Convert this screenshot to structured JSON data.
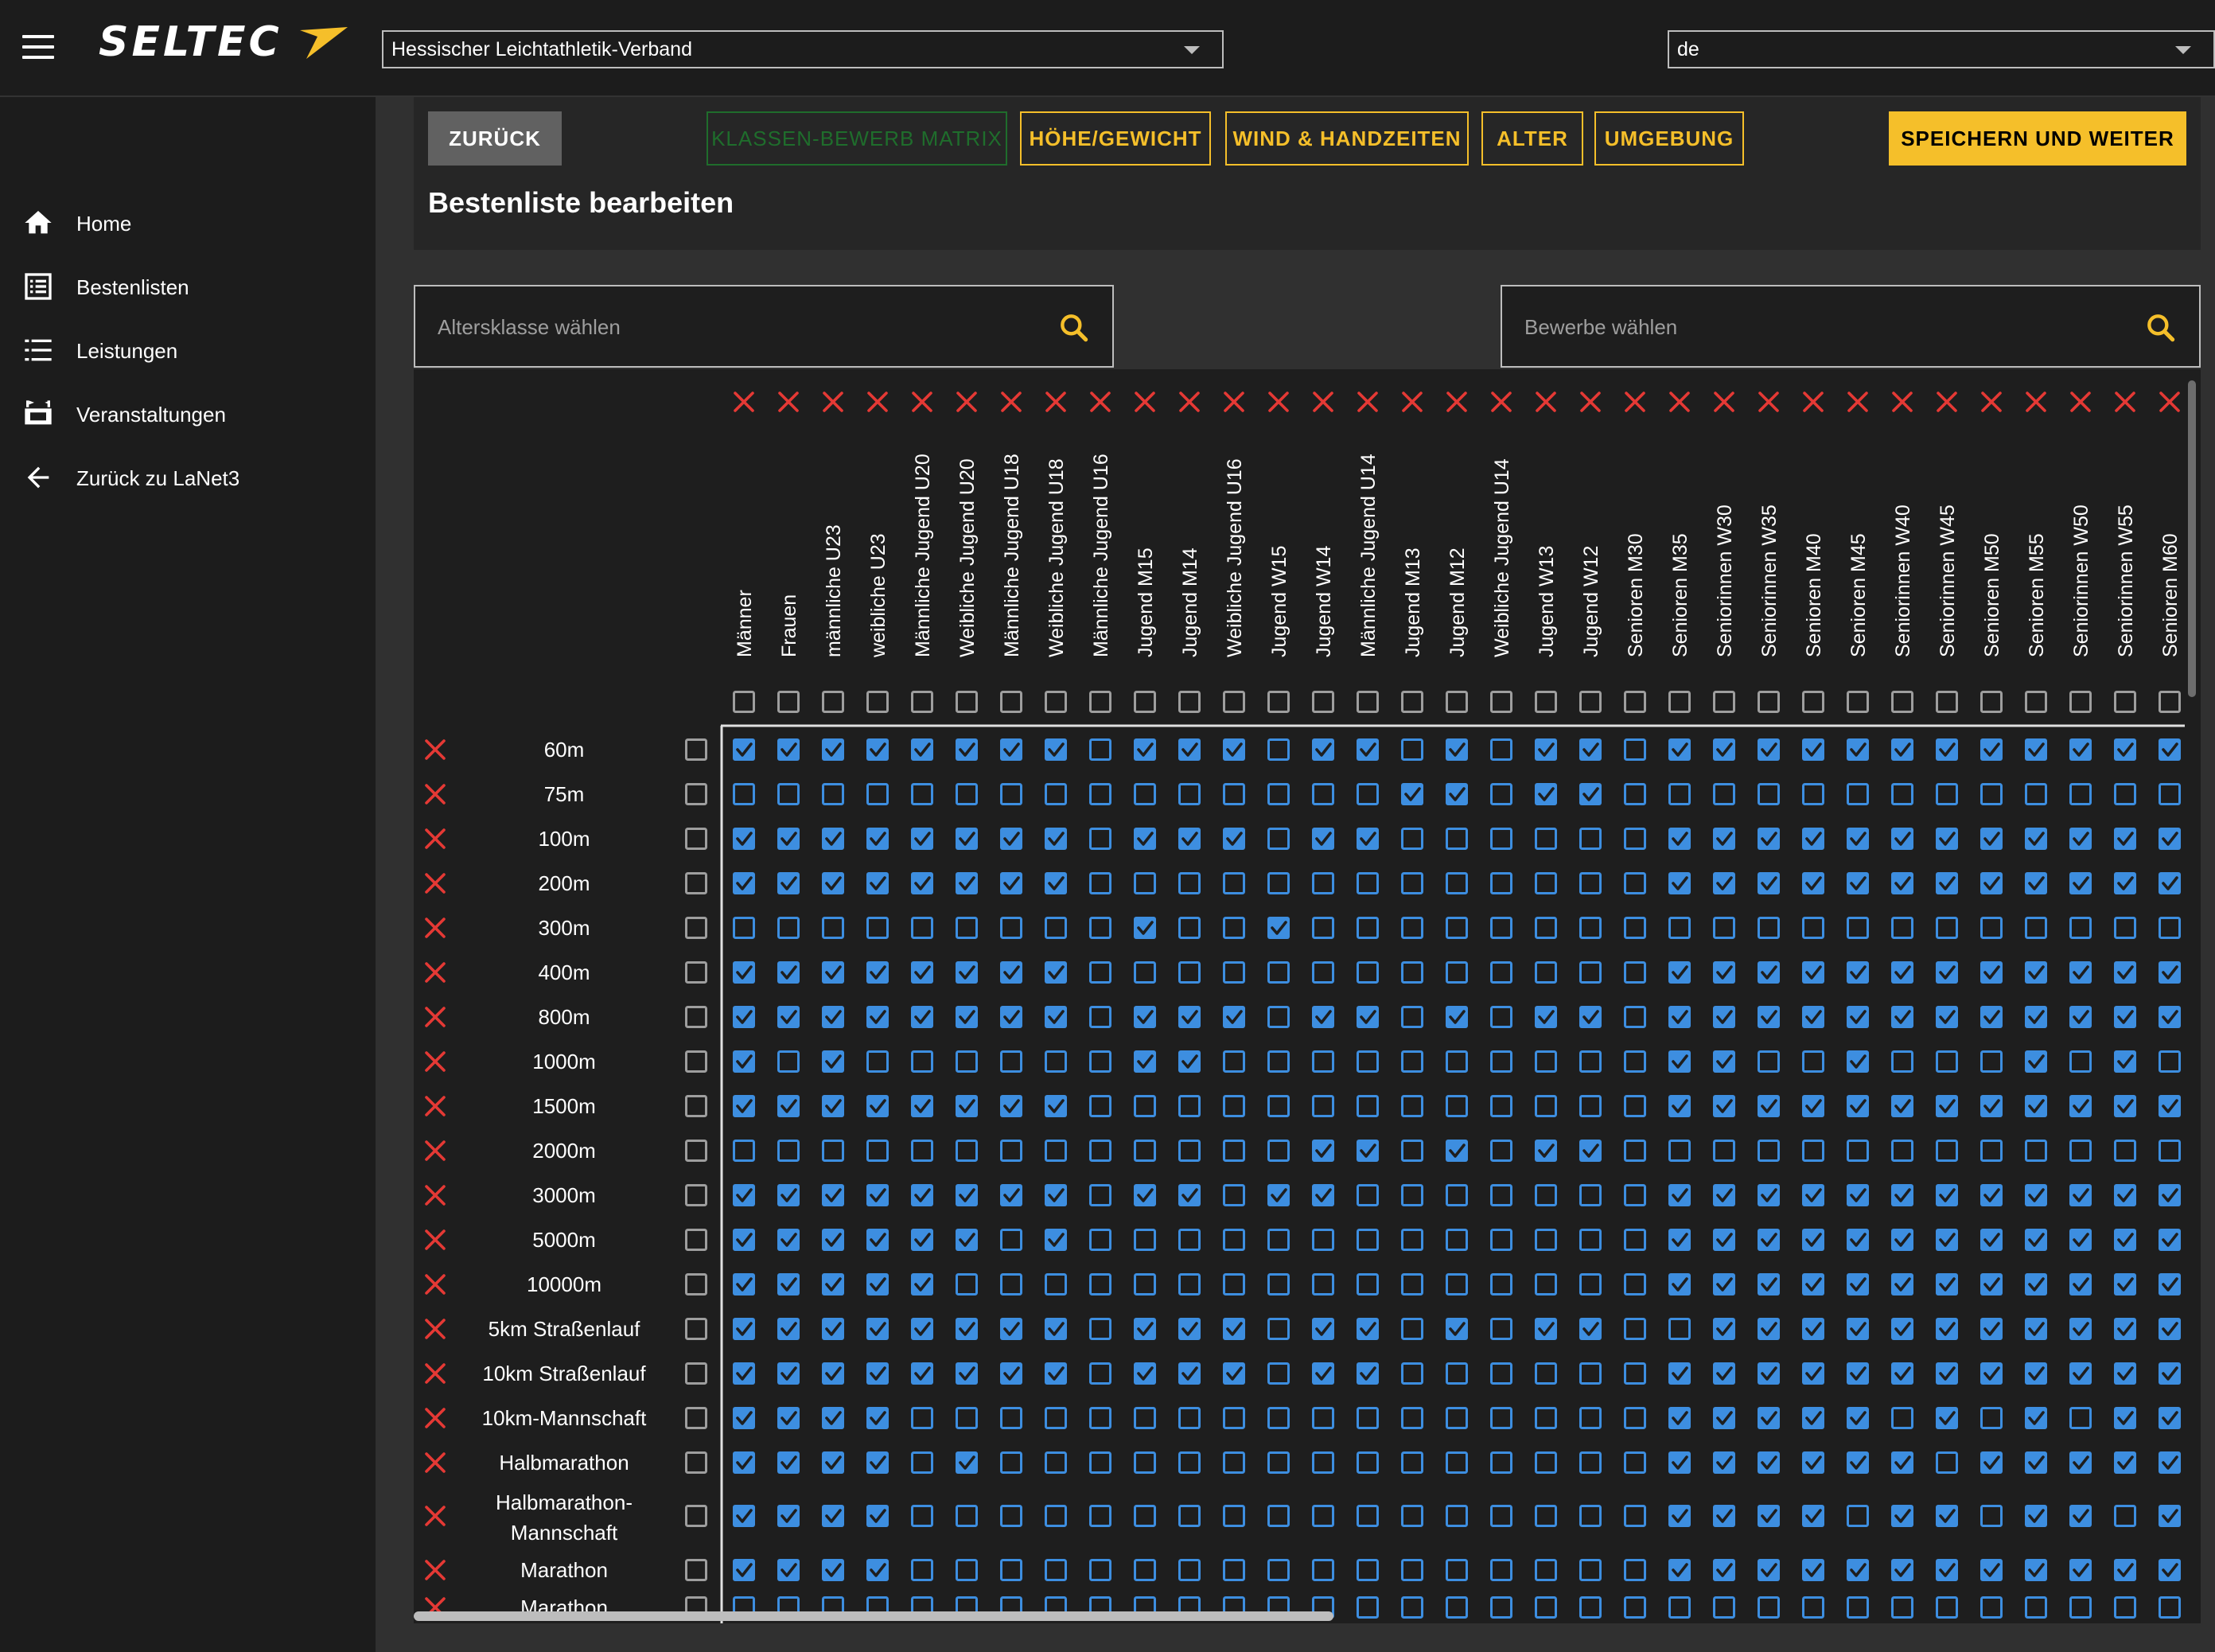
{
  "header": {
    "logo_text": "SELTEC",
    "federation_select": "Hessischer Leichtathletik-Verband",
    "language_select": "de"
  },
  "sidebar": {
    "items": [
      {
        "label": "Home",
        "icon": "home-icon"
      },
      {
        "label": "Bestenlisten",
        "icon": "list-box-icon"
      },
      {
        "label": "Leistungen",
        "icon": "numbered-list-icon"
      },
      {
        "label": "Veranstaltungen",
        "icon": "stadium-icon"
      },
      {
        "label": "Zurück zu LaNet3",
        "icon": "arrow-left-icon"
      }
    ]
  },
  "toolbar": {
    "back_label": "ZURÜCK",
    "tabs": [
      "KLASSEN-BEWERB MATRIX",
      "HÖHE/GEWICHT",
      "WIND & HANDZEITEN",
      "ALTER",
      "UMGEBUNG"
    ],
    "save_label": "SPEICHERN UND WEITER"
  },
  "page": {
    "title": "Bestenliste bearbeiten"
  },
  "filters": {
    "age_placeholder": "Altersklasse wählen",
    "event_placeholder": "Bewerbe wählen"
  },
  "colors": {
    "accent": "#f5bf2a",
    "active_tab": "#1f6d2c",
    "checkbox": "#3d8ee0",
    "remove": "#e53935"
  },
  "matrix": {
    "columns": [
      "Männer",
      "Frauen",
      "männliche U23",
      "weibliche U23",
      "Männliche Jugend U20",
      "Weibliche Jugend U20",
      "Männliche Jugend U18",
      "Weibliche Jugend U18",
      "Männliche Jugend U16",
      "Jugend M15",
      "Jugend M14",
      "Weibliche Jugend U16",
      "Jugend W15",
      "Jugend W14",
      "Männliche Jugend U14",
      "Jugend M13",
      "Jugend M12",
      "Weibliche Jugend U14",
      "Jugend W13",
      "Jugend W12",
      "Senioren M30",
      "Senioren M35",
      "Seniorinnen W30",
      "Seniorinnen W35",
      "Senioren M40",
      "Senioren M45",
      "Seniorinnen W40",
      "Seniorinnen W45",
      "Senioren M50",
      "Senioren M55",
      "Seniorinnen W50",
      "Seniorinnen W55",
      "Senioren M60"
    ],
    "rows": [
      {
        "label": "60m",
        "checks": "111111110111011010110111111111111"
      },
      {
        "label": "75m",
        "checks": "000000000000000110110000000000000"
      },
      {
        "label": "100m",
        "checks": "111111110111011000000111111111111"
      },
      {
        "label": "200m",
        "checks": "111111110000000000000111111111111"
      },
      {
        "label": "300m",
        "checks": "000000000100100000000000000000000"
      },
      {
        "label": "400m",
        "checks": "111111110000000000000111111111111"
      },
      {
        "label": "800m",
        "checks": "111111110111011010110111111111111"
      },
      {
        "label": "1000m",
        "checks": "101000000110000000000110010001010"
      },
      {
        "label": "1500m",
        "checks": "111111110000000000000111111111111"
      },
      {
        "label": "2000m",
        "checks": "000000000000011010110000000000000"
      },
      {
        "label": "3000m",
        "checks": "111111110110110000000111111111111"
      },
      {
        "label": "5000m",
        "checks": "111111010000000000000111111111111"
      },
      {
        "label": "10000m",
        "checks": "111110000000000000000111111111111"
      },
      {
        "label": "5km Straßenlauf",
        "checks": "111111110111011010110011111111111"
      },
      {
        "label": "10km Straßenlauf",
        "checks": "111111110111011000000111111111111"
      },
      {
        "label": "10km-Mannschaft",
        "checks": "111100000000000000000111110101011"
      },
      {
        "label": "Halbmarathon",
        "checks": "111101000000000000000111111011111"
      },
      {
        "label": "Halbmarathon-Mannschaft",
        "checks": "111100000000000000000111101101101"
      },
      {
        "label": "Marathon",
        "checks": "111100000000000000000111111111111"
      },
      {
        "label": "Marathon",
        "checks": "000000000000000000000000000000000"
      }
    ]
  }
}
